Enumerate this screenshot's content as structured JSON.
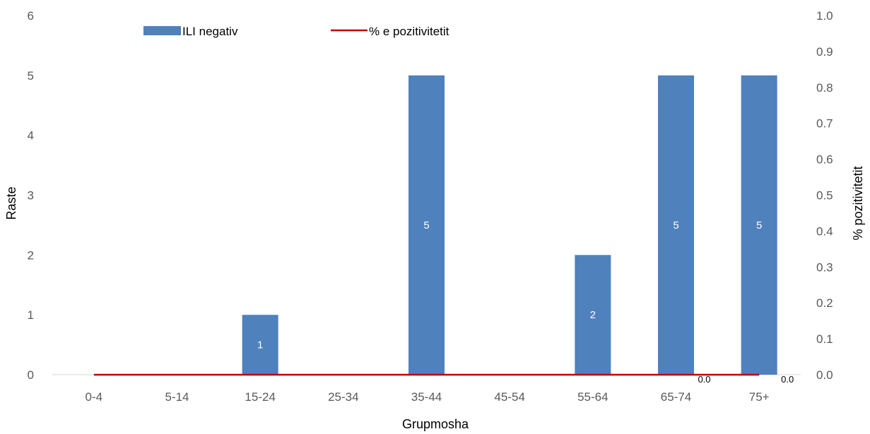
{
  "chart_data": {
    "type": "bar",
    "categories": [
      "0-4",
      "5-14",
      "15-24",
      "25-34",
      "35-44",
      "45-54",
      "55-64",
      "65-74",
      "75+"
    ],
    "series": [
      {
        "name": "ILI negativ",
        "type": "bar",
        "axis": "left",
        "values": [
          0,
          0,
          1,
          0,
          5,
          0,
          2,
          5,
          5
        ],
        "data_labels": [
          "",
          "",
          "1",
          "",
          "5",
          "",
          "2",
          "5",
          "5"
        ],
        "color": "#4F81BD"
      },
      {
        "name": "% e pozitivitetit",
        "type": "line",
        "axis": "right",
        "values": [
          0,
          0,
          0,
          0,
          0,
          0,
          0,
          0,
          0
        ],
        "data_labels": [
          "",
          "",
          "",
          "",
          "",
          "",
          "",
          "0.0",
          "0.0"
        ],
        "color": "#C00000"
      }
    ],
    "xlabel": "Grupmosha",
    "ylabel": "Raste",
    "y2label": "% pozitivitetit",
    "ylim": [
      0,
      6
    ],
    "y2lim": [
      0,
      1.0
    ],
    "yticks": [
      "0",
      "1",
      "2",
      "3",
      "4",
      "5",
      "6"
    ],
    "y2ticks": [
      "0.0",
      "0.1",
      "0.2",
      "0.3",
      "0.4",
      "0.5",
      "0.6",
      "0.7",
      "0.8",
      "0.9",
      "1.0"
    ],
    "grid": false,
    "legend_position": "top"
  }
}
